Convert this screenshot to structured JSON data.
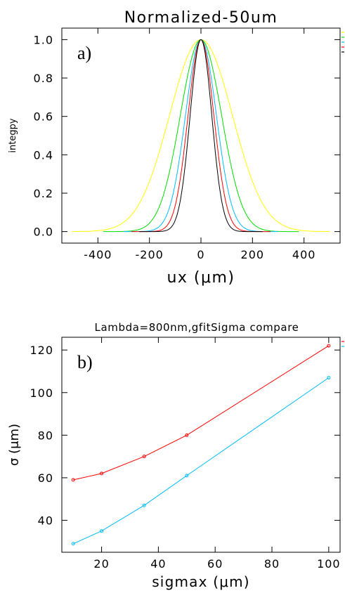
{
  "chart_data": [
    {
      "type": "line",
      "panel_label": "a)",
      "title": "Normalized-50um",
      "xlabel": "ux (μm)",
      "ylabel": "integpy",
      "xlim": [
        -540,
        540
      ],
      "ylim": [
        -0.06,
        1.06
      ],
      "x_ticks": [
        -400,
        -200,
        0,
        200,
        400
      ],
      "y_ticks": [
        0.0,
        0.2,
        0.4,
        0.6,
        0.8,
        1.0
      ],
      "x_tick_labels": [
        "-400",
        "-200",
        "0",
        "200",
        "400"
      ],
      "y_tick_labels": [
        "0.0",
        "0.2",
        "0.4",
        "0.6",
        "0.8",
        "1.0"
      ],
      "legend": "top-right",
      "series": [
        {
          "color": "#ffff00",
          "sigma": 122,
          "range": [
            -500,
            500
          ]
        },
        {
          "color": "#00dd00",
          "sigma": 80,
          "range": [
            -380,
            380
          ]
        },
        {
          "color": "#00bbff",
          "sigma": 60,
          "range": [
            -300,
            300
          ]
        },
        {
          "color": "#ff0000",
          "sigma": 50,
          "range": [
            -270,
            270
          ]
        },
        {
          "color": "#000000",
          "sigma": 42,
          "range": [
            -240,
            240
          ]
        }
      ]
    },
    {
      "type": "line",
      "panel_label": "b)",
      "title": "Lambda=800nm,gfitSigma compare",
      "xlabel": "sigmax (μm)",
      "ylabel": "σ (μm)",
      "xlim": [
        6,
        104
      ],
      "ylim": [
        25,
        126
      ],
      "x_ticks": [
        20,
        40,
        60,
        80,
        100
      ],
      "y_ticks": [
        40,
        60,
        80,
        100,
        120
      ],
      "x_tick_labels": [
        "20",
        "40",
        "60",
        "80",
        "100"
      ],
      "y_tick_labels": [
        "40",
        "60",
        "80",
        "100",
        "120"
      ],
      "legend": "top-right",
      "series": [
        {
          "color": "#ff0000",
          "x": [
            10,
            20,
            35,
            50,
            100
          ],
          "y": [
            59,
            62,
            70,
            80,
            122
          ]
        },
        {
          "color": "#00bbff",
          "x": [
            10,
            20,
            35,
            50,
            100
          ],
          "y": [
            29,
            35,
            47,
            61,
            107
          ]
        }
      ]
    }
  ]
}
